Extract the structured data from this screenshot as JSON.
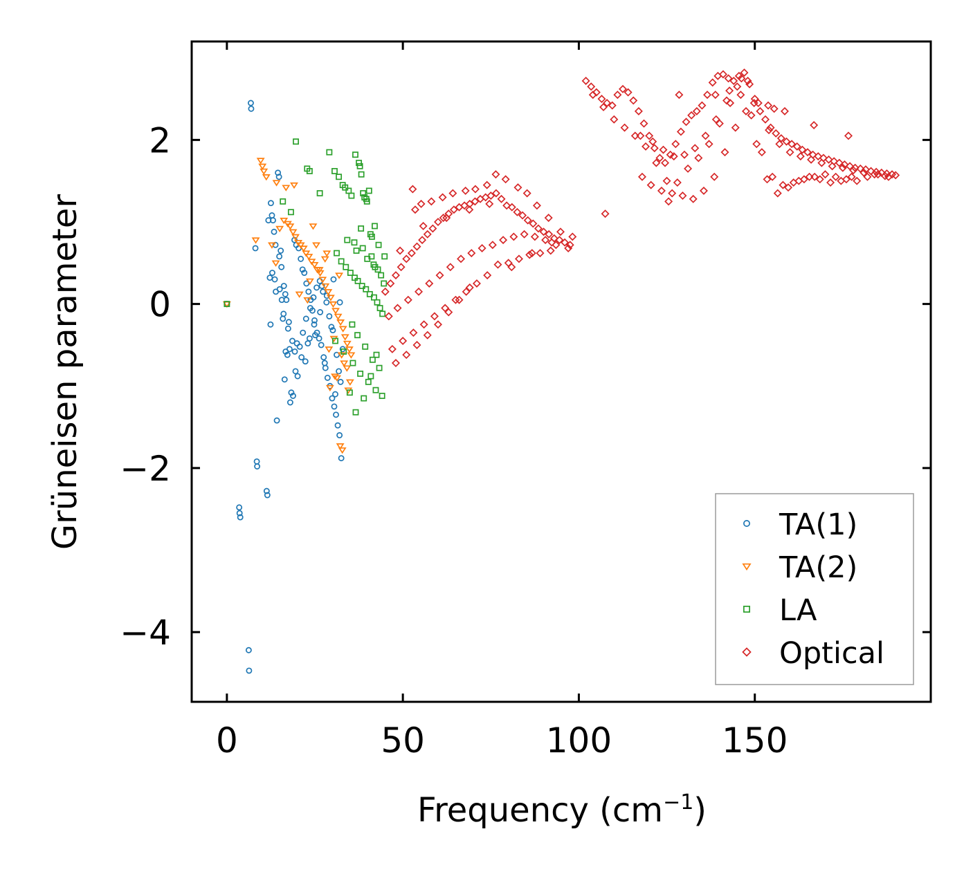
{
  "chart_data": {
    "type": "scatter",
    "title": "",
    "xlabel": "Frequency (cm",
    "xlabel_superscript": "−1",
    "xlabel_suffix": ")",
    "ylabel": "Grüneisen parameter",
    "xlim": [
      -10,
      200
    ],
    "ylim": [
      -4.85,
      3.2
    ],
    "xticks": [
      0,
      50,
      100,
      150
    ],
    "xtick_labels": [
      "0",
      "50",
      "100",
      "150"
    ],
    "yticks": [
      -4,
      -2,
      0,
      2
    ],
    "ytick_labels": [
      "−4",
      "−2",
      "0",
      "2"
    ],
    "grid": false,
    "legend_position": "bottom-right",
    "series": [
      {
        "name": "TA(1)",
        "marker": "circle",
        "color": "#1f77b4",
        "x": [
          0,
          6.8,
          6.9,
          3.5,
          3.6,
          3.8,
          6.2,
          6.3,
          8.5,
          8.6,
          11.3,
          11.5,
          12.5,
          12.8,
          13.1,
          13.4,
          13.8,
          14.5,
          14.8,
          15.3,
          15.5,
          16.2,
          16.6,
          16.9,
          17.2,
          17.8,
          18.3,
          18.8,
          19.2,
          19.7,
          20.4,
          21.0,
          21.5,
          22.0,
          22.6,
          23.2,
          23.8,
          24.3,
          24.9,
          25.6,
          26.2,
          26.8,
          27.5,
          28.0,
          28.6,
          29.3,
          29.9,
          30.5,
          31.0,
          31.5,
          32.0,
          32.5,
          12.9,
          13.6,
          15.0,
          16.1,
          17.4,
          18.6,
          19.3,
          20.7,
          21.6,
          22.5,
          23.7,
          24.6,
          25.5,
          26.4,
          27.3,
          28.3,
          29.1,
          30.1,
          31.2,
          32.3,
          14.2,
          16.4,
          18.0,
          19.5,
          21.2,
          23.0,
          24.8,
          26.5,
          28.4,
          30.3,
          32.1,
          12.2,
          13.9,
          15.6,
          17.6,
          19.9,
          22.3,
          25.1,
          27.8,
          30.8,
          32.9,
          8.1,
          11.8,
          14.9,
          12.4,
          16.7,
          20.1,
          23.5,
          27.0,
          29.7,
          31.8,
          15.9
        ],
        "y": [
          0,
          2.45,
          2.38,
          -2.48,
          -2.55,
          -2.6,
          -4.22,
          -4.47,
          -1.92,
          -1.98,
          -2.28,
          -2.33,
          1.23,
          1.08,
          1.02,
          0.88,
          0.72,
          1.6,
          1.55,
          0.65,
          0.45,
          0.22,
          0.12,
          0.05,
          -0.62,
          -0.55,
          -1.08,
          -1.12,
          0.78,
          0.72,
          0.68,
          0.55,
          0.42,
          0.38,
          0.25,
          0.15,
          0.05,
          -0.08,
          -0.2,
          -0.35,
          -0.42,
          -0.5,
          -0.65,
          -0.78,
          -0.9,
          -1.0,
          -1.15,
          -1.25,
          -1.35,
          -1.48,
          -1.6,
          -1.88,
          0.38,
          0.3,
          0.18,
          -0.12,
          -0.3,
          -0.45,
          -0.58,
          -0.52,
          -0.35,
          -0.18,
          -0.05,
          0.08,
          0.2,
          0.28,
          0.15,
          0.02,
          -0.15,
          -0.32,
          -0.62,
          -0.95,
          -1.42,
          -0.92,
          -1.2,
          -0.82,
          -0.65,
          -0.48,
          -0.25,
          -0.1,
          0.1,
          0.3,
          0.02,
          0.32,
          0.15,
          0.05,
          -0.22,
          -0.48,
          -0.7,
          -0.38,
          -0.72,
          -1.1,
          -0.55,
          0.68,
          1.02,
          0.58,
          -0.25,
          -0.58,
          -0.88,
          -0.42,
          0.22,
          -0.28,
          -0.82,
          -0.18
        ]
      },
      {
        "name": "TA(2)",
        "marker": "triangle-down",
        "color": "#ff7f0e",
        "x": [
          0,
          8.2,
          9.6,
          10.1,
          10.5,
          11.2,
          12.8,
          13.9,
          15.0,
          16.2,
          17.3,
          18.0,
          18.8,
          19.5,
          20.3,
          21.0,
          21.8,
          22.5,
          23.3,
          24.1,
          24.9,
          25.7,
          26.5,
          27.2,
          28.0,
          28.8,
          29.5,
          30.2,
          30.9,
          31.6,
          32.3,
          33.0,
          33.6,
          34.2,
          34.8,
          35.3,
          14.1,
          16.8,
          19.1,
          22.9,
          25.4,
          27.9,
          30.4,
          32.6,
          34.1,
          20.6,
          23.6,
          26.3,
          29.0,
          31.3,
          33.3,
          35.0,
          24.5,
          28.4,
          31.9,
          34.5,
          32.2,
          32.8,
          29.3,
          30.7
        ],
        "y": [
          0,
          0.78,
          1.75,
          1.68,
          1.62,
          1.55,
          0.72,
          0.5,
          0.92,
          1.02,
          0.98,
          0.95,
          0.88,
          0.82,
          0.75,
          0.72,
          0.68,
          0.62,
          0.58,
          0.52,
          0.48,
          0.42,
          0.38,
          0.3,
          0.22,
          0.15,
          0.08,
          0.0,
          -0.08,
          -0.15,
          -0.22,
          -0.3,
          -0.4,
          -0.48,
          -0.55,
          -0.62,
          1.48,
          1.42,
          1.45,
          0.05,
          0.72,
          0.55,
          -0.42,
          -0.62,
          -0.78,
          0.12,
          0.28,
          0.42,
          -0.55,
          -0.9,
          -0.72,
          -0.95,
          0.95,
          0.62,
          0.35,
          -1.05,
          -1.73,
          -1.78,
          -1.02,
          -0.88
        ]
      },
      {
        "name": "LA",
        "marker": "square",
        "color": "#2ca02c",
        "x": [
          0,
          15.9,
          18.2,
          19.6,
          22.8,
          23.5,
          26.4,
          29.1,
          30.6,
          31.8,
          32.9,
          33.6,
          34.6,
          35.4,
          36.5,
          37.5,
          37.8,
          38.2,
          39.1,
          39.6,
          40.4,
          41.2,
          42.0,
          43.1,
          44.8,
          38.7,
          34.2,
          36.8,
          39.9,
          41.7,
          42.9,
          43.8,
          44.6,
          31.2,
          32.5,
          33.8,
          35.1,
          36.3,
          37.2,
          38.4,
          39.5,
          40.6,
          41.8,
          42.7,
          43.5,
          44.2,
          30.8,
          33.2,
          35.8,
          37.9,
          40.2,
          42.3,
          44.1,
          34.9,
          36.6,
          38.9,
          40.9,
          42.5,
          35.6,
          37.1,
          39.3,
          41.4,
          43.3,
          38.1,
          40.8,
          36.2,
          38.6,
          41.1,
          39.8,
          42.1
        ],
        "y": [
          0,
          1.25,
          1.12,
          1.98,
          1.65,
          1.62,
          1.35,
          1.85,
          1.62,
          1.55,
          1.45,
          1.42,
          1.38,
          1.32,
          1.82,
          1.72,
          1.68,
          1.58,
          1.3,
          1.28,
          1.38,
          0.82,
          0.95,
          0.72,
          0.58,
          1.35,
          0.78,
          0.65,
          0.55,
          0.48,
          0.42,
          0.35,
          0.25,
          0.62,
          0.52,
          0.45,
          0.38,
          0.32,
          0.28,
          0.22,
          0.18,
          0.12,
          0.08,
          0.02,
          -0.05,
          -0.12,
          -0.45,
          -0.58,
          -0.72,
          -0.85,
          -0.95,
          -1.05,
          -1.12,
          -1.08,
          -1.32,
          -1.15,
          -0.88,
          -0.62,
          -0.25,
          -0.38,
          -0.52,
          -0.68,
          -0.78,
          0.92,
          0.85,
          0.75,
          0.68,
          0.58,
          1.25,
          0.45
        ]
      },
      {
        "name": "Optical",
        "marker": "diamond",
        "color": "#d62728",
        "x": [
          45.0,
          46.5,
          48.0,
          49.5,
          51.0,
          52.5,
          54.0,
          55.5,
          57.0,
          58.5,
          60.0,
          61.5,
          63.0,
          64.5,
          66.0,
          67.5,
          69.0,
          70.5,
          72.0,
          73.5,
          75.0,
          76.5,
          78.0,
          79.5,
          81.0,
          82.5,
          84.0,
          85.5,
          87.0,
          88.5,
          90.0,
          91.5,
          93.0,
          94.5,
          96.0,
          97.5,
          46.0,
          48.5,
          51.5,
          54.5,
          57.5,
          60.5,
          63.5,
          66.5,
          69.5,
          72.5,
          75.5,
          78.5,
          81.5,
          84.5,
          87.5,
          90.5,
          93.5,
          47.0,
          50.0,
          53.0,
          56.0,
          59.0,
          62.0,
          65.0,
          68.0,
          71.0,
          74.0,
          77.0,
          80.0,
          83.0,
          86.0,
          89.0,
          92.0,
          48.0,
          51.0,
          54.0,
          57.0,
          60.0,
          63.0,
          66.0,
          69.0,
          52.8,
          53.5,
          55.2,
          58.1,
          61.3,
          64.2,
          67.8,
          70.6,
          73.9,
          76.4,
          79.2,
          82.7,
          85.3,
          88.1,
          91.4,
          94.8,
          49.2,
          55.8,
          62.4,
          68.9,
          74.6,
          80.9,
          86.7,
          92.3,
          97.0,
          98.2,
          107.5,
          102.0,
          103.5,
          105.0,
          106.5,
          108.0,
          109.5,
          111.0,
          112.5,
          114.0,
          115.5,
          117.0,
          118.5,
          120.0,
          121.5,
          123.0,
          124.5,
          126.0,
          127.5,
          129.0,
          130.5,
          132.0,
          133.5,
          135.0,
          136.5,
          138.0,
          139.5,
          141.0,
          142.5,
          144.0,
          145.5,
          147.0,
          148.5,
          150.0,
          151.5,
          153.0,
          154.5,
          156.0,
          157.5,
          159.0,
          160.5,
          162.0,
          163.5,
          165.0,
          166.5,
          168.0,
          169.5,
          171.0,
          172.5,
          174.0,
          175.5,
          177.0,
          178.5,
          180.0,
          181.5,
          183.0,
          184.5,
          186.0,
          187.5,
          189.0,
          190.0,
          104.0,
          107.0,
          110.0,
          113.0,
          116.0,
          119.0,
          122.0,
          125.0,
          128.0,
          131.0,
          134.0,
          137.0,
          140.0,
          143.0,
          146.0,
          149.0,
          152.0,
          155.0,
          158.0,
          161.0,
          164.0,
          167.0,
          170.0,
          173.0,
          176.0,
          179.0,
          182.0,
          185.0,
          188.0,
          118.0,
          120.5,
          123.5,
          126.5,
          129.5,
          132.5,
          135.5,
          138.5,
          141.5,
          144.5,
          147.5,
          150.5,
          153.5,
          156.5,
          159.5,
          162.5,
          165.5,
          168.5,
          171.5,
          174.5,
          177.5,
          117.5,
          121.0,
          124.0,
          127.0,
          130.0,
          133.0,
          136.0,
          139.0,
          142.0,
          145.0,
          148.0,
          151.0,
          154.0,
          157.0,
          160.0,
          163.0,
          166.0,
          169.0,
          172.0,
          175.0,
          178.0,
          181.0,
          184.0,
          187.0,
          125.5,
          128.5,
          138.8,
          142.8,
          146.2,
          149.8,
          153.8,
          155.5,
          158.5,
          166.8,
          176.6
        ],
        "y": [
          0.15,
          0.25,
          0.35,
          0.45,
          0.55,
          0.62,
          0.7,
          0.78,
          0.85,
          0.92,
          1.0,
          1.05,
          1.1,
          1.15,
          1.18,
          1.2,
          1.22,
          1.25,
          1.28,
          1.3,
          1.32,
          1.35,
          1.28,
          1.2,
          1.18,
          1.12,
          1.08,
          1.02,
          0.98,
          0.92,
          0.88,
          0.85,
          0.8,
          0.78,
          0.75,
          0.72,
          -0.15,
          -0.05,
          0.05,
          0.15,
          0.25,
          0.35,
          0.45,
          0.55,
          0.62,
          0.68,
          0.72,
          0.78,
          0.82,
          0.85,
          0.82,
          0.78,
          0.72,
          -0.55,
          -0.45,
          -0.35,
          -0.25,
          -0.15,
          -0.05,
          0.05,
          0.15,
          0.25,
          0.35,
          0.48,
          0.5,
          0.55,
          0.6,
          0.62,
          0.65,
          -0.72,
          -0.62,
          -0.5,
          -0.38,
          -0.25,
          -0.1,
          0.05,
          0.2,
          1.4,
          1.15,
          1.22,
          1.25,
          1.3,
          1.35,
          1.38,
          1.4,
          1.45,
          1.58,
          1.52,
          1.42,
          1.35,
          1.2,
          1.05,
          0.88,
          0.65,
          0.95,
          1.05,
          1.15,
          1.22,
          0.45,
          0.62,
          0.75,
          0.68,
          0.82,
          1.1,
          2.72,
          2.65,
          2.58,
          2.5,
          2.45,
          2.42,
          2.55,
          2.62,
          2.58,
          2.48,
          2.35,
          2.2,
          2.05,
          1.9,
          1.78,
          1.72,
          1.82,
          1.95,
          2.1,
          2.22,
          2.3,
          2.35,
          2.42,
          2.55,
          2.7,
          2.78,
          2.8,
          2.75,
          2.72,
          2.78,
          2.82,
          2.68,
          2.5,
          2.35,
          2.25,
          2.15,
          2.08,
          2.02,
          1.98,
          1.95,
          1.92,
          1.88,
          1.85,
          1.82,
          1.8,
          1.78,
          1.76,
          1.74,
          1.72,
          1.7,
          1.68,
          1.66,
          1.65,
          1.64,
          1.62,
          1.61,
          1.6,
          1.59,
          1.58,
          1.57,
          2.55,
          2.4,
          2.25,
          2.15,
          2.05,
          1.92,
          1.72,
          1.5,
          1.48,
          1.65,
          1.78,
          1.95,
          2.2,
          2.45,
          2.55,
          2.3,
          1.85,
          1.55,
          1.45,
          1.48,
          1.52,
          1.55,
          1.58,
          1.55,
          1.52,
          1.5,
          1.55,
          1.58,
          1.55,
          1.55,
          1.45,
          1.38,
          1.35,
          1.32,
          1.28,
          1.38,
          1.55,
          1.85,
          2.15,
          2.35,
          1.95,
          1.52,
          1.35,
          1.42,
          1.5,
          1.55,
          1.52,
          1.48,
          1.5,
          1.55,
          2.05,
          1.98,
          1.88,
          1.8,
          1.82,
          1.9,
          2.05,
          2.25,
          2.48,
          2.65,
          2.72,
          2.45,
          2.12,
          1.95,
          1.85,
          1.8,
          1.76,
          1.72,
          1.68,
          1.66,
          1.63,
          1.6,
          1.58,
          1.56,
          1.25,
          2.55,
          2.55,
          2.6,
          2.75,
          2.45,
          2.42,
          2.38,
          2.35,
          2.18,
          2.05
        ]
      }
    ]
  }
}
